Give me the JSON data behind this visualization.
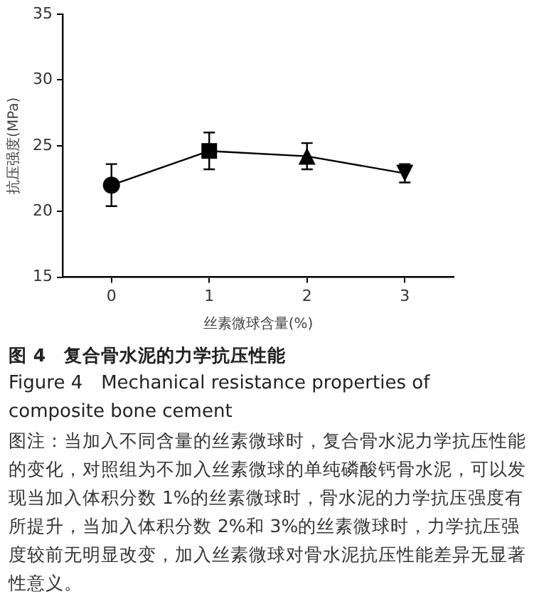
{
  "chart_data": {
    "type": "line",
    "xlabel": "丝素微球含量(%)",
    "ylabel": "抗压强度(MPa)",
    "x": [
      0,
      1,
      2,
      3
    ],
    "xlim": [
      -0.5,
      3.5
    ],
    "xticks": [
      0,
      1,
      2,
      3
    ],
    "ylim": [
      15,
      35
    ],
    "yticks": [
      15,
      20,
      25,
      30,
      35
    ],
    "series": [
      {
        "color": "#000000",
        "values": [
          22.0,
          24.6,
          24.2,
          22.9
        ],
        "errors": [
          1.6,
          1.4,
          [
            23.2,
            25.2
          ],
          [
            22.2,
            23.6
          ]
        ]
      }
    ],
    "marker": [
      "circle",
      "square",
      "triangle",
      "triangle-down"
    ],
    "line_style": "solid",
    "grid": false,
    "legend": false,
    "annotations": [
      "图 4　复合骨水泥的力学抗压性能",
      "Figure 4　Mechanical resistance properties of composite bone cement",
      "图注：当加入不同含量的丝素微球时，复合骨水泥力学抗压性能的变化，对照组为不加入丝素微球的单纯磷酸钙骨水泥，可以发现当加入体积分数 1%的丝素微球时，骨水泥的力学抗压强度有所提升，当加入体积分数 2%和 3%的丝素微球时，力学抗压强度较前无明显改变，加入丝素微球对骨水泥抗压性能差异无显著性意义。"
    ]
  }
}
